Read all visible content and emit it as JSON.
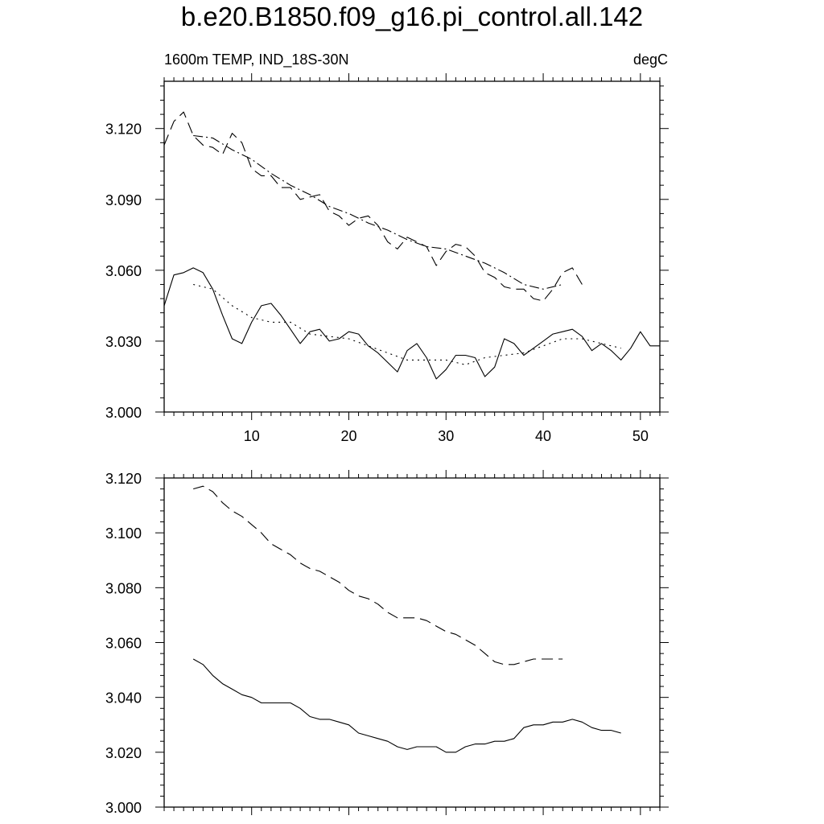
{
  "title": "b.e20.B1850.f09_g16.pi_control.all.142",
  "subtitle_left": "1600m TEMP, IND_18S-30N",
  "subtitle_right": "degC",
  "chart_data": [
    {
      "type": "line",
      "xlim": [
        1,
        52
      ],
      "ylim": [
        3.0,
        3.14
      ],
      "x_ticks": [
        10,
        20,
        30,
        40,
        50
      ],
      "x_tick_labels": [
        "10",
        "20",
        "30",
        "40",
        "50"
      ],
      "y_ticks": [
        3.0,
        3.03,
        3.06,
        3.09,
        3.12
      ],
      "y_tick_labels": [
        "3.000",
        "3.030",
        "3.060",
        "3.090",
        "3.120"
      ],
      "series": [
        {
          "style": "dashed",
          "x": [
            1,
            2,
            3,
            4,
            5,
            6,
            7,
            8,
            9,
            10,
            11,
            12,
            13,
            14,
            15,
            16,
            17,
            18,
            19,
            20,
            21,
            22,
            23,
            24,
            25,
            26,
            27,
            28,
            29,
            30,
            31,
            32,
            33,
            34,
            35,
            36,
            37,
            38,
            39,
            40,
            41,
            42,
            43,
            44
          ],
          "values": [
            3.113,
            3.123,
            3.127,
            3.117,
            3.113,
            3.112,
            3.109,
            3.118,
            3.114,
            3.103,
            3.1,
            3.1,
            3.095,
            3.095,
            3.09,
            3.091,
            3.092,
            3.085,
            3.083,
            3.079,
            3.082,
            3.083,
            3.079,
            3.072,
            3.069,
            3.074,
            3.072,
            3.07,
            3.062,
            3.068,
            3.071,
            3.07,
            3.066,
            3.059,
            3.057,
            3.053,
            3.052,
            3.052,
            3.048,
            3.047,
            3.052,
            3.059,
            3.061,
            3.054
          ]
        },
        {
          "style": "dash-dot",
          "x": [
            4,
            6,
            8,
            10,
            12,
            14,
            16,
            18,
            20,
            22,
            24,
            26,
            28,
            30,
            32,
            34,
            36,
            38,
            40,
            42
          ],
          "values": [
            3.117,
            3.116,
            3.111,
            3.107,
            3.101,
            3.096,
            3.092,
            3.087,
            3.084,
            3.08,
            3.077,
            3.073,
            3.07,
            3.069,
            3.066,
            3.063,
            3.059,
            3.054,
            3.052,
            3.054
          ]
        },
        {
          "style": "solid",
          "x": [
            1,
            2,
            3,
            4,
            5,
            6,
            7,
            8,
            9,
            10,
            11,
            12,
            13,
            14,
            15,
            16,
            17,
            18,
            19,
            20,
            21,
            22,
            23,
            24,
            25,
            26,
            27,
            28,
            29,
            30,
            31,
            32,
            33,
            34,
            35,
            36,
            37,
            38,
            39,
            40,
            41,
            42,
            43,
            44,
            45,
            46,
            47,
            48,
            49,
            50,
            51,
            52
          ],
          "values": [
            3.045,
            3.058,
            3.059,
            3.061,
            3.059,
            3.052,
            3.041,
            3.031,
            3.029,
            3.038,
            3.045,
            3.046,
            3.041,
            3.035,
            3.029,
            3.034,
            3.035,
            3.03,
            3.031,
            3.034,
            3.033,
            3.028,
            3.025,
            3.021,
            3.017,
            3.026,
            3.029,
            3.023,
            3.014,
            3.018,
            3.024,
            3.024,
            3.023,
            3.015,
            3.019,
            3.031,
            3.029,
            3.024,
            3.027,
            3.03,
            3.033,
            3.034,
            3.035,
            3.032,
            3.026,
            3.029,
            3.026,
            3.022,
            3.027,
            3.034,
            3.028,
            3.028
          ]
        },
        {
          "style": "dotted",
          "x": [
            4,
            6,
            8,
            10,
            12,
            14,
            16,
            18,
            20,
            22,
            24,
            26,
            28,
            30,
            32,
            34,
            36,
            38,
            40,
            42,
            44,
            46,
            48
          ],
          "values": [
            3.054,
            3.052,
            3.045,
            3.04,
            3.038,
            3.038,
            3.033,
            3.032,
            3.031,
            3.028,
            3.025,
            3.022,
            3.022,
            3.022,
            3.02,
            3.023,
            3.024,
            3.025,
            3.028,
            3.031,
            3.031,
            3.029,
            3.027
          ]
        }
      ]
    },
    {
      "type": "line",
      "xlim": [
        1,
        52
      ],
      "ylim": [
        3.0,
        3.12
      ],
      "x_ticks": [
        10,
        20,
        30,
        40,
        50
      ],
      "y_ticks": [
        3.0,
        3.02,
        3.04,
        3.06,
        3.08,
        3.1,
        3.12
      ],
      "y_tick_labels": [
        "3.000",
        "3.020",
        "3.040",
        "3.060",
        "3.080",
        "3.100",
        "3.120"
      ],
      "series": [
        {
          "style": "dashed",
          "x": [
            4,
            5,
            6,
            7,
            8,
            9,
            10,
            11,
            12,
            13,
            14,
            15,
            16,
            17,
            18,
            19,
            20,
            21,
            22,
            23,
            24,
            25,
            26,
            27,
            28,
            29,
            30,
            31,
            32,
            33,
            34,
            35,
            36,
            37,
            38,
            39,
            40,
            41,
            42
          ],
          "values": [
            3.116,
            3.117,
            3.115,
            3.111,
            3.108,
            3.106,
            3.103,
            3.1,
            3.096,
            3.094,
            3.092,
            3.089,
            3.087,
            3.086,
            3.084,
            3.082,
            3.079,
            3.077,
            3.076,
            3.074,
            3.071,
            3.069,
            3.069,
            3.069,
            3.068,
            3.066,
            3.064,
            3.063,
            3.061,
            3.059,
            3.056,
            3.053,
            3.052,
            3.052,
            3.053,
            3.054,
            3.054,
            3.054,
            3.054
          ]
        },
        {
          "style": "solid",
          "x": [
            4,
            5,
            6,
            7,
            8,
            9,
            10,
            11,
            12,
            13,
            14,
            15,
            16,
            17,
            18,
            19,
            20,
            21,
            22,
            23,
            24,
            25,
            26,
            27,
            28,
            29,
            30,
            31,
            32,
            33,
            34,
            35,
            36,
            37,
            38,
            39,
            40,
            41,
            42,
            43,
            44,
            45,
            46,
            47,
            48
          ],
          "values": [
            3.054,
            3.052,
            3.048,
            3.045,
            3.043,
            3.041,
            3.04,
            3.038,
            3.038,
            3.038,
            3.038,
            3.036,
            3.033,
            3.032,
            3.032,
            3.031,
            3.03,
            3.027,
            3.026,
            3.025,
            3.024,
            3.022,
            3.021,
            3.022,
            3.022,
            3.022,
            3.02,
            3.02,
            3.022,
            3.023,
            3.023,
            3.024,
            3.024,
            3.025,
            3.029,
            3.03,
            3.03,
            3.031,
            3.031,
            3.032,
            3.031,
            3.029,
            3.028,
            3.028,
            3.027
          ]
        }
      ]
    }
  ]
}
